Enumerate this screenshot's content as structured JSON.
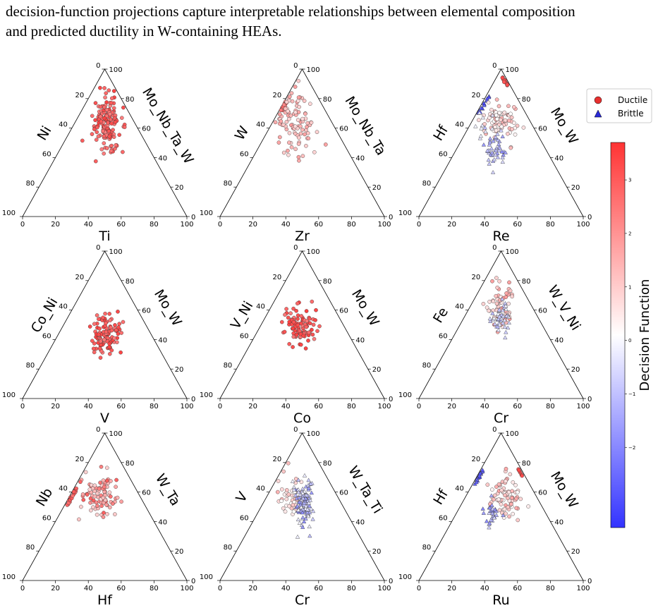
{
  "caption": {
    "line1": "decision-function projections capture interpretable relationships between elemental composition",
    "line2": "and predicted ductility in W-containing HEAs."
  },
  "colors": {
    "ductile": "#e8302f",
    "brittle": "#4a4ae8",
    "cmap_low": "#3333ff",
    "cmap_mid": "#ffffff",
    "cmap_high": "#ff3333"
  },
  "legend": {
    "position": "top-right",
    "entries": [
      {
        "label": "Ductile",
        "marker": "circle",
        "color": "#e8302f"
      },
      {
        "label": "Brittle",
        "marker": "triangle",
        "color": "#2a2ad8"
      }
    ]
  },
  "colorbar": {
    "label": "Decision Function",
    "range": [
      -3.5,
      3.7
    ],
    "ticks": [
      "3",
      "2",
      "1",
      "0",
      "−1",
      "−2"
    ]
  },
  "tick_labels": [
    "0",
    "20",
    "40",
    "60",
    "80",
    "100"
  ],
  "chart_data": [
    {
      "type": "scatter",
      "bottom": "Ti",
      "left": "Ni",
      "right": "Mo_Nb_Ta_W",
      "clusters": [
        {
          "cls": "ductile",
          "n": 150,
          "b": 51,
          "l": 37,
          "sb": 4.2,
          "sl": 10,
          "dmin": 2.3,
          "dmax": 3.5
        }
      ]
    },
    {
      "type": "scatter",
      "bottom": "Zr",
      "left": "W",
      "right": "Mo_Nb_Ta",
      "clusters": [
        {
          "cls": "ductile",
          "n": 18,
          "b": 45,
          "l": 26,
          "sb": 2.2,
          "sl": 4,
          "dmin": 2.2,
          "dmax": 3.0,
          "line": true
        },
        {
          "cls": "ductile",
          "n": 95,
          "b": 45,
          "l": 38,
          "sb": 6,
          "sl": 9,
          "dmin": 0.7,
          "dmax": 1.9
        }
      ]
    },
    {
      "type": "scatter",
      "bottom": "Re",
      "left": "Hf",
      "right": "Mo_W",
      "clusters": [
        {
          "cls": "brittle",
          "n": 14,
          "b": 60,
          "l": 24,
          "sb": 4,
          "sl": 6,
          "dmin": -3.3,
          "dmax": -2.5,
          "line": true
        },
        {
          "cls": "ductile",
          "n": 10,
          "b": 67,
          "l": 8,
          "sb": 1.5,
          "sl": 3,
          "dmin": 3.0,
          "dmax": 3.6,
          "line": true,
          "right": true
        },
        {
          "cls": "ductile",
          "n": 80,
          "b": 49,
          "l": 35,
          "sb": 6,
          "sl": 6,
          "dmin": 0.1,
          "dmax": 1.5
        },
        {
          "cls": "brittle",
          "n": 45,
          "b": 47,
          "l": 55,
          "sb": 3,
          "sl": 6,
          "dmin": -1.9,
          "dmax": -0.5
        },
        {
          "cls": "brittle",
          "n": 10,
          "b": 38,
          "l": 38,
          "sb": 5,
          "sl": 5,
          "dmin": -0.4,
          "dmax": -0.05
        }
      ]
    },
    {
      "type": "scatter",
      "bottom": "V",
      "left": "Co_Ni",
      "right": "Mo_W",
      "clusters": [
        {
          "cls": "ductile",
          "n": 110,
          "b": 50,
          "l": 57,
          "sb": 4,
          "sl": 8,
          "dmin": 2.4,
          "dmax": 3.5
        }
      ]
    },
    {
      "type": "scatter",
      "bottom": "Co",
      "left": "V_Ni",
      "right": "Mo_W",
      "clusters": [
        {
          "cls": "ductile",
          "n": 95,
          "b": 49,
          "l": 52,
          "sb": 5,
          "sl": 6,
          "dmin": 2.4,
          "dmax": 3.5
        }
      ]
    },
    {
      "type": "scatter",
      "bottom": "Cr",
      "left": "Fe",
      "right": "W_V_Ni",
      "clusters": [
        {
          "cls": "ductile",
          "n": 60,
          "b": 49,
          "l": 36,
          "sb": 4,
          "sl": 8,
          "dmin": 0.4,
          "dmax": 1.9
        },
        {
          "cls": "brittle",
          "n": 45,
          "b": 50,
          "l": 45,
          "sb": 3,
          "sl": 6,
          "dmin": -1.2,
          "dmax": -0.1
        }
      ]
    },
    {
      "type": "scatter",
      "bottom": "Hf",
      "left": "Nb",
      "right": "W_Ta",
      "clusters": [
        {
          "cls": "ductile",
          "n": 20,
          "b": 48,
          "l": 43,
          "sb": 3,
          "sl": 6,
          "dmin": 2.5,
          "dmax": 3.3,
          "line": true
        },
        {
          "cls": "ductile",
          "n": 90,
          "b": 47,
          "l": 42,
          "sb": 6,
          "sl": 8,
          "dmin": 0.8,
          "dmax": 3.0
        }
      ]
    },
    {
      "type": "scatter",
      "bottom": "Cr",
      "left": "V",
      "right": "W_Ta_Ti",
      "clusters": [
        {
          "cls": "ductile",
          "n": 55,
          "b": 44,
          "l": 43,
          "sb": 4,
          "sl": 6,
          "dmin": 0.1,
          "dmax": 1.5
        },
        {
          "cls": "brittle",
          "n": 110,
          "b": 51,
          "l": 47,
          "sb": 3,
          "sl": 7,
          "dmin": -2.0,
          "dmax": -0.1
        }
      ]
    },
    {
      "type": "scatter",
      "bottom": "Ru",
      "left": "Hf",
      "right": "Mo_W",
      "clusters": [
        {
          "cls": "brittle",
          "n": 16,
          "b": 58,
          "l": 30,
          "sb": 3,
          "sl": 5,
          "dmin": -3.2,
          "dmax": -2.4,
          "line": true
        },
        {
          "cls": "ductile",
          "n": 75,
          "b": 52,
          "l": 43,
          "sb": 5,
          "sl": 7,
          "dmin": 0.2,
          "dmax": 1.8
        },
        {
          "cls": "ductile",
          "n": 8,
          "b": 66,
          "l": 26,
          "sb": 3,
          "sl": 3,
          "dmin": 2.8,
          "dmax": 3.5
        },
        {
          "cls": "brittle",
          "n": 30,
          "b": 45,
          "l": 55,
          "sb": 2.5,
          "sl": 4,
          "dmin": -2.0,
          "dmax": -0.6
        }
      ]
    }
  ]
}
